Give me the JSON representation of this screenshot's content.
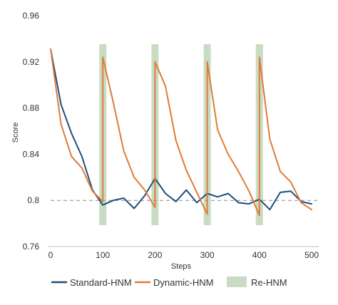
{
  "chart_data": {
    "type": "line",
    "title": "",
    "xlabel": "Steps",
    "ylabel": "Score",
    "xlim": [
      0,
      500
    ],
    "ylim": [
      0.76,
      0.96
    ],
    "x_ticks": [
      "0",
      "100",
      "200",
      "300",
      "400",
      "500"
    ],
    "y_ticks": [
      "0.76",
      "0.8",
      "0.84",
      "0.88",
      "0.92",
      "0.96"
    ],
    "reference_line": {
      "y": 0.8,
      "style": "dashed"
    },
    "rehnm_steps": [
      100,
      200,
      300,
      400
    ],
    "series": [
      {
        "name": "Standard-HNM",
        "color": "#1f4e79",
        "x": [
          0,
          20,
          40,
          60,
          80,
          100,
          120,
          140,
          160,
          180,
          200,
          220,
          240,
          260,
          280,
          300,
          320,
          340,
          360,
          380,
          400,
          420,
          440,
          460,
          480,
          500
        ],
        "y": [
          0.931,
          0.883,
          0.858,
          0.838,
          0.809,
          0.796,
          0.8,
          0.802,
          0.793,
          0.804,
          0.819,
          0.806,
          0.799,
          0.809,
          0.798,
          0.806,
          0.803,
          0.806,
          0.798,
          0.797,
          0.801,
          0.792,
          0.807,
          0.808,
          0.799,
          0.797
        ]
      },
      {
        "name": "Dynamic-HNM",
        "color": "#e07b39",
        "x": [
          0,
          20,
          40,
          60,
          80,
          100,
          100,
          120,
          140,
          160,
          180,
          200,
          200,
          220,
          240,
          260,
          280,
          300,
          300,
          320,
          340,
          360,
          380,
          400,
          400,
          420,
          440,
          460,
          480,
          500
        ],
        "y": [
          0.931,
          0.866,
          0.838,
          0.828,
          0.808,
          0.799,
          0.924,
          0.885,
          0.843,
          0.82,
          0.809,
          0.794,
          0.92,
          0.899,
          0.852,
          0.826,
          0.807,
          0.788,
          0.92,
          0.861,
          0.84,
          0.825,
          0.808,
          0.787,
          0.924,
          0.853,
          0.825,
          0.816,
          0.798,
          0.792
        ]
      }
    ],
    "legend": {
      "position": "bottom",
      "entries": [
        {
          "label": "Standard-HNM",
          "type": "line",
          "color": "#1f4e79"
        },
        {
          "label": "Dynamic-HNM",
          "type": "line",
          "color": "#e07b39"
        },
        {
          "label": "Re-HNM",
          "type": "band",
          "color": "#c9dcc3"
        }
      ]
    },
    "grid": false
  }
}
